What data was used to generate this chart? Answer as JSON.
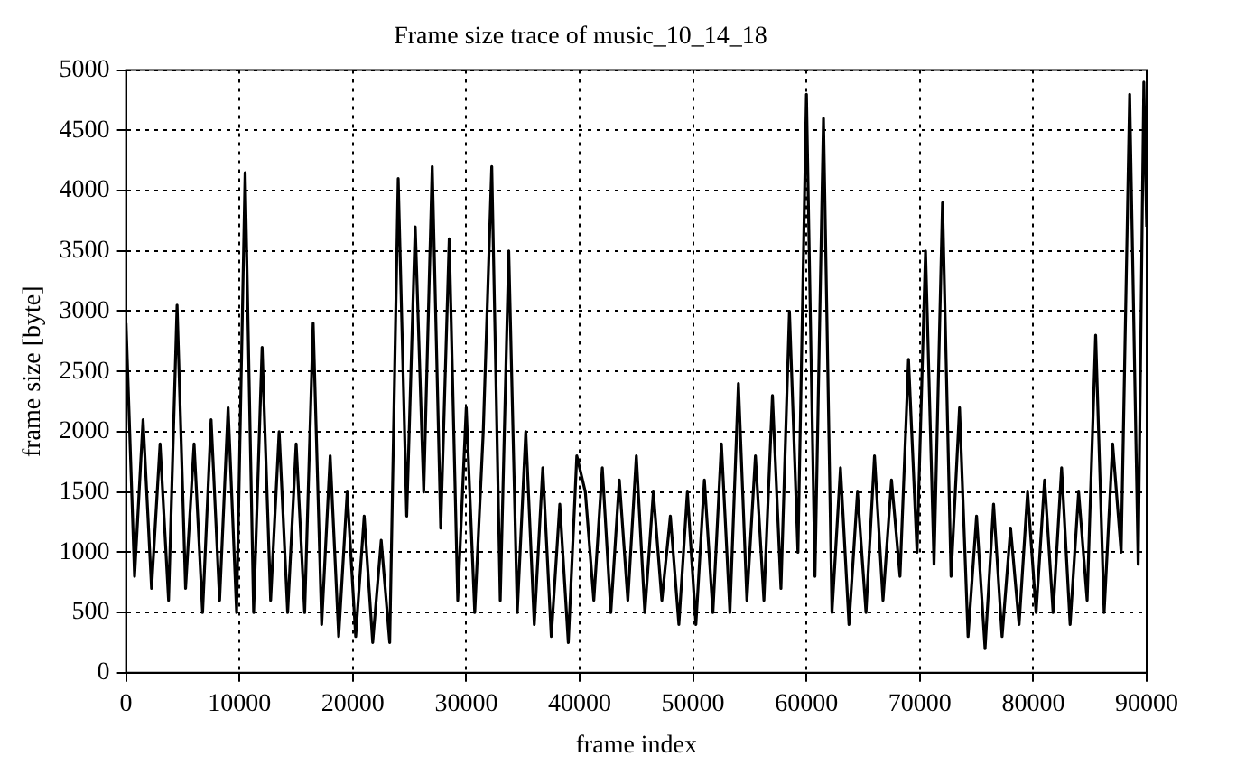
{
  "chart_data": {
    "type": "line",
    "title": "Frame size trace of music_10_14_18",
    "xlabel": "frame index",
    "ylabel": "frame size [byte]",
    "x": [
      0,
      750,
      1500,
      2250,
      3000,
      3750,
      4500,
      5250,
      6000,
      6750,
      7500,
      8250,
      9000,
      9750,
      10500,
      11250,
      12000,
      12750,
      13500,
      14250,
      15000,
      15750,
      16500,
      17250,
      18000,
      18750,
      19500,
      20250,
      21000,
      21750,
      22500,
      23250,
      24000,
      24750,
      25500,
      26250,
      27000,
      27750,
      28500,
      29250,
      30000,
      30750,
      31500,
      32250,
      33000,
      33750,
      34500,
      35250,
      36000,
      36750,
      37500,
      38250,
      39000,
      39750,
      40500,
      41250,
      42000,
      42750,
      43500,
      44250,
      45000,
      45750,
      46500,
      47250,
      48000,
      48750,
      49500,
      50250,
      51000,
      51750,
      52500,
      53250,
      54000,
      54750,
      55500,
      56250,
      57000,
      57750,
      58500,
      59250,
      60000,
      60750,
      61500,
      62250,
      63000,
      63750,
      64500,
      65250,
      66000,
      66750,
      67500,
      68250,
      69000,
      69750,
      70500,
      71250,
      72000,
      72750,
      73500,
      74250,
      75000,
      75750,
      76500,
      77250,
      78000,
      78750,
      79500,
      80250,
      81000,
      81750,
      82500,
      83250,
      84000,
      84750,
      85500,
      86250,
      87000,
      87750,
      88500,
      89250,
      89750,
      90000
    ],
    "series": [
      {
        "color": "#000000",
        "values": [
          2900,
          800,
          2100,
          700,
          1900,
          600,
          3050,
          700,
          1900,
          500,
          2100,
          600,
          2200,
          500,
          4150,
          500,
          2700,
          600,
          2000,
          500,
          1900,
          500,
          2900,
          400,
          1800,
          300,
          1500,
          300,
          1300,
          250,
          1100,
          250,
          4100,
          1300,
          3700,
          1500,
          4200,
          1200,
          3600,
          600,
          2200,
          500,
          2000,
          4200,
          600,
          3500,
          500,
          2000,
          400,
          1700,
          300,
          1400,
          250,
          1800,
          1500,
          600,
          1700,
          500,
          1600,
          600,
          1800,
          500,
          1500,
          600,
          1300,
          400,
          1500,
          400,
          1600,
          500,
          1900,
          500,
          2400,
          600,
          1800,
          600,
          2300,
          700,
          3000,
          1000,
          4800,
          800,
          4600,
          500,
          1700,
          400,
          1500,
          500,
          1800,
          600,
          1600,
          800,
          2600,
          1000,
          3500,
          900,
          3900,
          800,
          2200,
          300,
          1300,
          200,
          1400,
          300,
          1200,
          400,
          1500,
          500,
          1600,
          500,
          1700,
          400,
          1500,
          600,
          2800,
          500,
          1900,
          1000,
          4800,
          900,
          4900,
          3700
        ]
      }
    ],
    "xlim": [
      0,
      90000
    ],
    "xticks": [
      0,
      10000,
      20000,
      30000,
      40000,
      50000,
      60000,
      70000,
      80000,
      90000
    ],
    "ylim": [
      0,
      5000
    ],
    "yticks": [
      0,
      500,
      1000,
      1500,
      2000,
      2500,
      3000,
      3500,
      4000,
      4500,
      5000
    ],
    "grid": true,
    "legend": false,
    "marker": "none",
    "line_style": "solid"
  }
}
